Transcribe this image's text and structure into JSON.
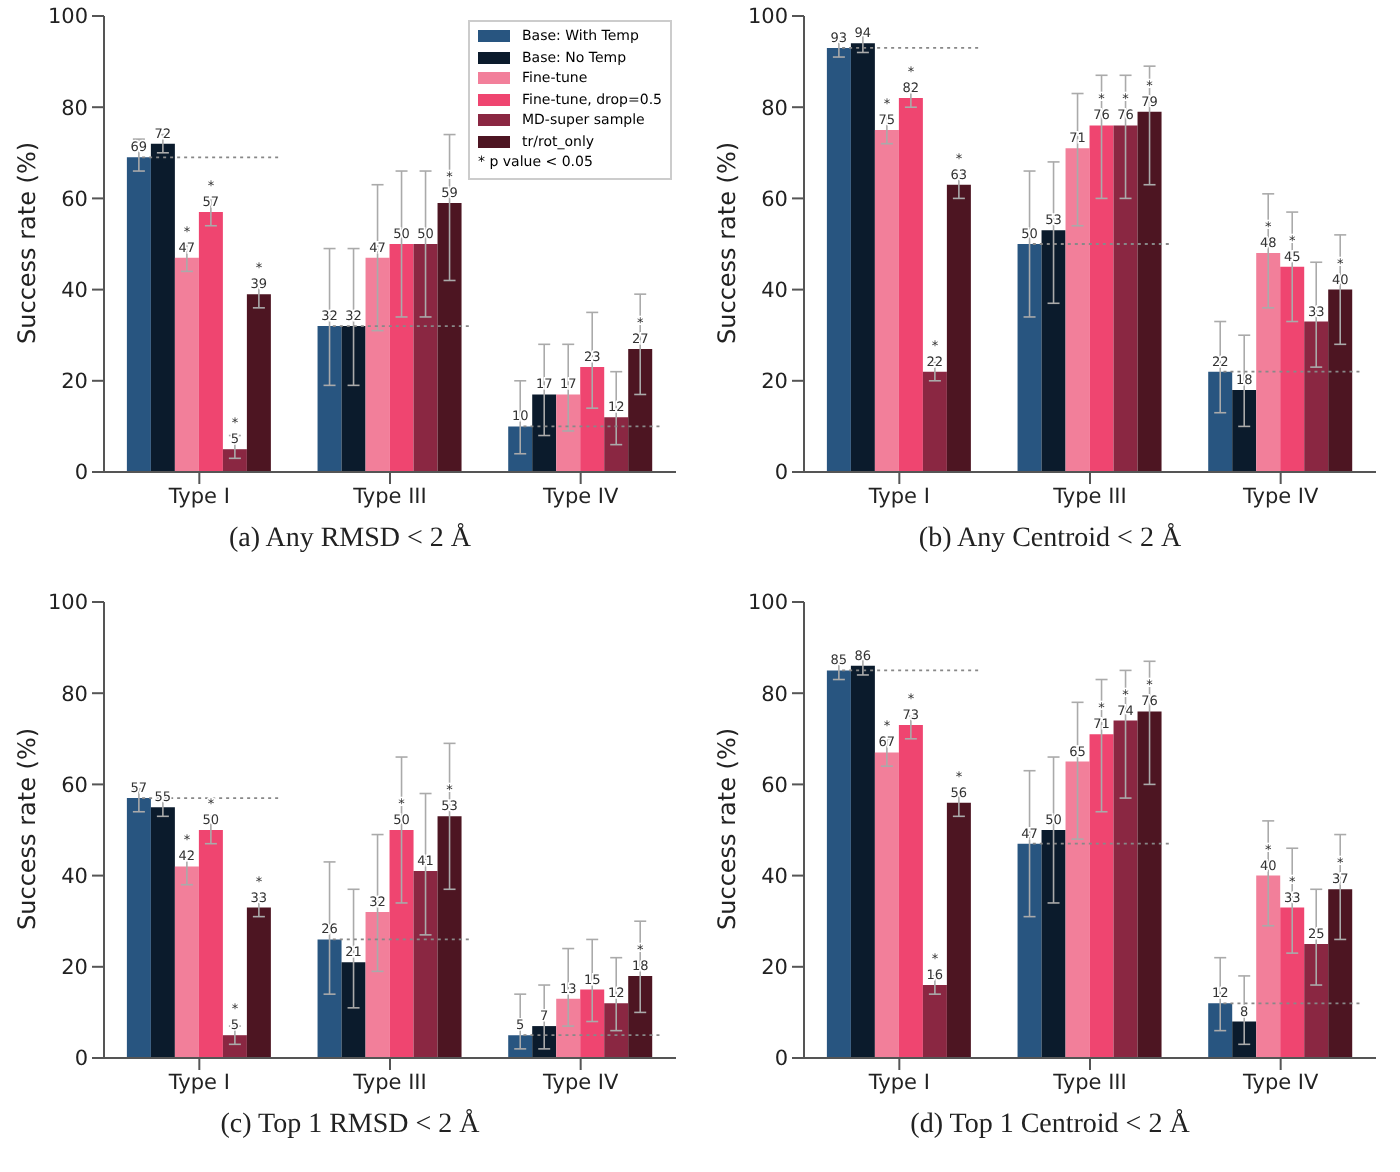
{
  "chart_data": [
    {
      "type": "bar",
      "title": "(a) Any RMSD < 2 Å",
      "ylabel": "Success rate (%)",
      "categories": [
        "Type I",
        "Type III",
        "Type IV"
      ],
      "ylim": [
        0,
        100
      ],
      "yticks": [
        0,
        20,
        40,
        60,
        80,
        100
      ],
      "legend": "top right",
      "data_labels": true,
      "annotations": [
        "* p value < 0.05"
      ],
      "series": [
        {
          "name": "Base: With Temp",
          "color": "#285580",
          "values": [
            69,
            32,
            10
          ],
          "errors": [
            [
              66,
              73
            ],
            [
              19,
              49
            ],
            [
              4,
              20
            ]
          ],
          "value_labels": [
            "69",
            "32",
            "10"
          ]
        },
        {
          "name": "Base: No Temp",
          "color": "#0b1b2c",
          "values": [
            72,
            32,
            17
          ],
          "errors": [
            [
              70,
              74
            ],
            [
              19,
              49
            ],
            [
              8,
              28
            ]
          ],
          "value_labels": [
            "72",
            "32",
            "17"
          ]
        },
        {
          "name": "Fine-tune",
          "color": "#f27f9a",
          "values": [
            47,
            47,
            17
          ],
          "errors": [
            [
              44,
              50
            ],
            [
              31,
              63
            ],
            [
              9,
              28
            ]
          ],
          "value_labels": [
            "*\n47",
            "47",
            "17"
          ]
        },
        {
          "name": "Fine-tune, drop=0.5",
          "color": "#ef4570",
          "values": [
            57,
            50,
            23
          ],
          "errors": [
            [
              54,
              60
            ],
            [
              34,
              66
            ],
            [
              14,
              35
            ]
          ],
          "value_labels": [
            "*\n57",
            "50",
            "23"
          ]
        },
        {
          "name": "MD-super sample",
          "color": "#8a2742",
          "values": [
            5,
            50,
            12
          ],
          "errors": [
            [
              3,
              8
            ],
            [
              34,
              66
            ],
            [
              6,
              22
            ]
          ],
          "value_labels": [
            "*\n5",
            "50",
            "12"
          ]
        },
        {
          "name": "tr/rot_only",
          "color": "#4d1522",
          "values": [
            39,
            59,
            27
          ],
          "errors": [
            [
              36,
              42
            ],
            [
              42,
              74
            ],
            [
              17,
              39
            ]
          ],
          "value_labels": [
            "*\n39",
            "*\n59",
            "*\n27"
          ]
        }
      ],
      "ref_lines": [
        {
          "axis": "y",
          "value": 69,
          "color": "#888888",
          "line_style": "dotted"
        },
        {
          "axis": "y",
          "value": 32,
          "color": "#888888",
          "line_style": "dotted"
        },
        {
          "axis": "y",
          "value": 10,
          "color": "#888888",
          "line_style": "dotted"
        }
      ]
    },
    {
      "type": "bar",
      "title": "(b) Any Centroid < 2 Å",
      "ylabel": "Success rate (%)",
      "categories": [
        "Type I",
        "Type III",
        "Type IV"
      ],
      "ylim": [
        0,
        100
      ],
      "yticks": [
        0,
        20,
        40,
        60,
        80,
        100
      ],
      "legend": false,
      "data_labels": true,
      "series": [
        {
          "color": "#285580",
          "values": [
            93,
            50,
            22
          ],
          "errors": [
            [
              91,
              95
            ],
            [
              34,
              66
            ],
            [
              13,
              33
            ]
          ],
          "value_labels": [
            "93",
            "50",
            "22"
          ]
        },
        {
          "color": "#0b1b2c",
          "values": [
            94,
            53,
            18
          ],
          "errors": [
            [
              92,
              96
            ],
            [
              37,
              68
            ],
            [
              10,
              30
            ]
          ],
          "value_labels": [
            "94",
            "53",
            "18"
          ]
        },
        {
          "color": "#f27f9a",
          "values": [
            75,
            71,
            48
          ],
          "errors": [
            [
              72,
              78
            ],
            [
              54,
              83
            ],
            [
              36,
              61
            ]
          ],
          "value_labels": [
            "*\n75",
            "71",
            "*\n48"
          ]
        },
        {
          "color": "#ef4570",
          "values": [
            82,
            76,
            45
          ],
          "errors": [
            [
              80,
              84
            ],
            [
              60,
              87
            ],
            [
              33,
              57
            ]
          ],
          "value_labels": [
            "*\n82",
            "*\n76",
            "*\n45"
          ]
        },
        {
          "color": "#8a2742",
          "values": [
            22,
            76,
            33
          ],
          "errors": [
            [
              20,
              24
            ],
            [
              60,
              87
            ],
            [
              23,
              46
            ]
          ],
          "value_labels": [
            "*\n22",
            "*\n76",
            "33"
          ]
        },
        {
          "color": "#4d1522",
          "values": [
            63,
            79,
            40
          ],
          "errors": [
            [
              60,
              65
            ],
            [
              63,
              89
            ],
            [
              28,
              52
            ]
          ],
          "value_labels": [
            "*\n63",
            "*\n79",
            "*\n40"
          ]
        }
      ],
      "ref_lines": [
        {
          "axis": "y",
          "value": 93,
          "color": "#888888",
          "line_style": "dotted"
        },
        {
          "axis": "y",
          "value": 50,
          "color": "#888888",
          "line_style": "dotted"
        },
        {
          "axis": "y",
          "value": 22,
          "color": "#888888",
          "line_style": "dotted"
        }
      ]
    },
    {
      "type": "bar",
      "title": "(c) Top 1 RMSD < 2 Å",
      "ylabel": "Success rate (%)",
      "categories": [
        "Type I",
        "Type III",
        "Type IV"
      ],
      "ylim": [
        0,
        100
      ],
      "yticks": [
        0,
        20,
        40,
        60,
        80,
        100
      ],
      "legend": false,
      "data_labels": true,
      "series": [
        {
          "color": "#285580",
          "values": [
            57,
            26,
            5
          ],
          "errors": [
            [
              54,
              59
            ],
            [
              14,
              43
            ],
            [
              2,
              14
            ]
          ],
          "value_labels": [
            "57",
            "26",
            "5"
          ]
        },
        {
          "color": "#0b1b2c",
          "values": [
            55,
            21,
            7
          ],
          "errors": [
            [
              53,
              57
            ],
            [
              11,
              37
            ],
            [
              2,
              16
            ]
          ],
          "value_labels": [
            "55",
            "21",
            "7"
          ]
        },
        {
          "color": "#f27f9a",
          "values": [
            42,
            32,
            13
          ],
          "errors": [
            [
              38,
              44
            ],
            [
              19,
              49
            ],
            [
              7,
              24
            ]
          ],
          "value_labels": [
            "*\n42",
            "32",
            "13"
          ]
        },
        {
          "color": "#ef4570",
          "values": [
            50,
            50,
            15
          ],
          "errors": [
            [
              47,
              53
            ],
            [
              34,
              66
            ],
            [
              8,
              26
            ]
          ],
          "value_labels": [
            "*\n50",
            "*\n50",
            "15"
          ]
        },
        {
          "color": "#8a2742",
          "values": [
            5,
            41,
            12
          ],
          "errors": [
            [
              3,
              7
            ],
            [
              27,
              58
            ],
            [
              6,
              22
            ]
          ],
          "value_labels": [
            "*\n5",
            "41",
            "12"
          ]
        },
        {
          "color": "#4d1522",
          "values": [
            33,
            53,
            18
          ],
          "errors": [
            [
              31,
              35
            ],
            [
              37,
              69
            ],
            [
              10,
              30
            ]
          ],
          "value_labels": [
            "*\n33",
            "*\n53",
            "*\n18"
          ]
        }
      ],
      "ref_lines": [
        {
          "axis": "y",
          "value": 57,
          "color": "#888888",
          "line_style": "dotted"
        },
        {
          "axis": "y",
          "value": 26,
          "color": "#888888",
          "line_style": "dotted"
        },
        {
          "axis": "y",
          "value": 5,
          "color": "#888888",
          "line_style": "dotted"
        }
      ]
    },
    {
      "type": "bar",
      "title": "(d) Top 1 Centroid < 2 Å",
      "ylabel": "Success rate (%)",
      "categories": [
        "Type I",
        "Type III",
        "Type IV"
      ],
      "ylim": [
        0,
        100
      ],
      "yticks": [
        0,
        20,
        40,
        60,
        80,
        100
      ],
      "legend": false,
      "data_labels": true,
      "series": [
        {
          "color": "#285580",
          "values": [
            85,
            47,
            12
          ],
          "errors": [
            [
              83,
              87
            ],
            [
              31,
              63
            ],
            [
              6,
              22
            ]
          ],
          "value_labels": [
            "85",
            "47",
            "12"
          ]
        },
        {
          "color": "#0b1b2c",
          "values": [
            86,
            50,
            8
          ],
          "errors": [
            [
              84,
              88
            ],
            [
              34,
              66
            ],
            [
              3,
              18
            ]
          ],
          "value_labels": [
            "86",
            "50",
            "8"
          ]
        },
        {
          "color": "#f27f9a",
          "values": [
            67,
            65,
            40
          ],
          "errors": [
            [
              64,
              70
            ],
            [
              48,
              78
            ],
            [
              29,
              52
            ]
          ],
          "value_labels": [
            "*\n67",
            "65",
            "*\n40"
          ]
        },
        {
          "color": "#ef4570",
          "values": [
            73,
            71,
            33
          ],
          "errors": [
            [
              70,
              75
            ],
            [
              54,
              83
            ],
            [
              23,
              46
            ]
          ],
          "value_labels": [
            "*\n73",
            "*\n71",
            "*\n33"
          ]
        },
        {
          "color": "#8a2742",
          "values": [
            16,
            74,
            25
          ],
          "errors": [
            [
              14,
              18
            ],
            [
              57,
              85
            ],
            [
              16,
              37
            ]
          ],
          "value_labels": [
            "*\n16",
            "*\n74",
            "25"
          ]
        },
        {
          "color": "#4d1522",
          "values": [
            56,
            76,
            37
          ],
          "errors": [
            [
              53,
              58
            ],
            [
              60,
              87
            ],
            [
              26,
              49
            ]
          ],
          "value_labels": [
            "*\n56",
            "*\n76",
            "*\n37"
          ]
        }
      ],
      "ref_lines": [
        {
          "axis": "y",
          "value": 85,
          "color": "#888888",
          "line_style": "dotted"
        },
        {
          "axis": "y",
          "value": 47,
          "color": "#888888",
          "line_style": "dotted"
        },
        {
          "axis": "y",
          "value": 12,
          "color": "#888888",
          "line_style": "dotted"
        }
      ]
    }
  ]
}
